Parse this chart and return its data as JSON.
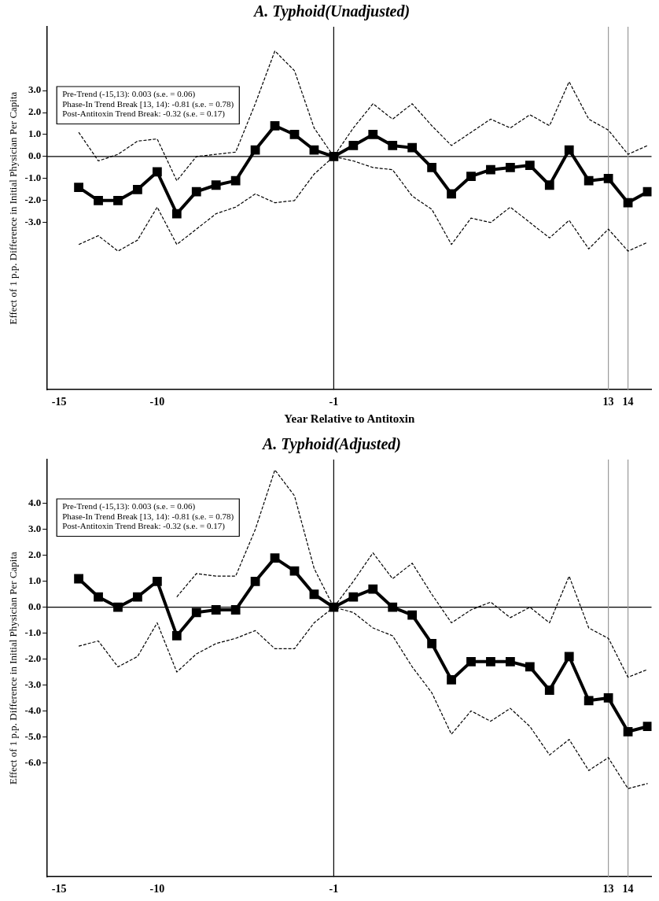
{
  "chart_data": [
    {
      "type": "line",
      "title": "A. Typhoid(Unadjusted)",
      "xlabel": "Year Relative to Antitoxin",
      "ylabel": "Effect of 1 p.p. Difference in Initial Physician Per Capita",
      "x": [
        -14,
        -13,
        -12,
        -11,
        -10,
        -9,
        -8,
        -7,
        -6,
        -5,
        -4,
        -3,
        -2,
        -1,
        0,
        1,
        2,
        3,
        4,
        5,
        6,
        7,
        8,
        9,
        10,
        11,
        12,
        13,
        14,
        15
      ],
      "series": [
        {
          "color": "#000000",
          "marker": "square",
          "line_style": "solid",
          "values": [
            -1.4,
            -2.0,
            -2.0,
            -1.5,
            -0.7,
            -2.6,
            -1.6,
            -1.3,
            -1.1,
            0.3,
            1.4,
            1.0,
            0.3,
            0,
            0.5,
            1.0,
            0.5,
            0.4,
            -0.5,
            -1.7,
            -0.9,
            -0.6,
            -0.5,
            -0.4,
            -1.3,
            0.3,
            -1.1,
            -1.0,
            -2.1,
            -1.6
          ]
        },
        {
          "color": "#000000",
          "marker": "none",
          "line_style": "dashed",
          "values": [
            1.1,
            -0.2,
            0.1,
            0.7,
            0.8,
            -1.1,
            0.0,
            0.1,
            0.2,
            2.4,
            4.8,
            3.9,
            1.3,
            0,
            1.3,
            2.4,
            1.7,
            2.4,
            1.4,
            0.5,
            1.1,
            1.7,
            1.3,
            1.9,
            1.4,
            3.4,
            1.7,
            1.2,
            0.1,
            0.5
          ]
        },
        {
          "color": "#000000",
          "marker": "none",
          "line_style": "dashed",
          "values": [
            -4.0,
            -3.6,
            -4.3,
            -3.8,
            -2.3,
            -4.0,
            -3.3,
            -2.6,
            -2.3,
            -1.7,
            -2.1,
            -2.0,
            -0.8,
            0,
            -0.2,
            -0.5,
            -0.6,
            -1.8,
            -2.4,
            -4.0,
            -2.8,
            -3.0,
            -2.3,
            -3.0,
            -3.7,
            -2.9,
            -4.2,
            -3.3,
            -4.3,
            -3.9
          ]
        }
      ],
      "xlim": [
        -15.6,
        15.2
      ],
      "xticks": [
        -15,
        -10,
        -1,
        13,
        14
      ],
      "ylim": [
        -10.6,
        5.9
      ],
      "yticks": [
        {
          "value": 3,
          "label": "3.0"
        },
        {
          "value": 2,
          "label": "2.0"
        },
        {
          "value": 1,
          "label": "1.0"
        },
        {
          "value": 0,
          "label": "0.0"
        },
        {
          "value": -1,
          "label": "-1.0"
        },
        {
          "value": -2,
          "label": "-2.0"
        },
        {
          "value": -3,
          "label": "-3.0"
        }
      ],
      "ref_lines": [
        {
          "axis": "y",
          "value": 0,
          "color": "#000000"
        },
        {
          "axis": "x",
          "value": -1,
          "color": "#000000"
        },
        {
          "axis": "x",
          "value": 13,
          "color": "#999999"
        },
        {
          "axis": "x",
          "value": 14,
          "color": "#999999"
        }
      ],
      "annotations": [
        "Pre-Trend (-15,13): 0.003 (s.e. = 0.06)",
        "Phase-In Trend Break [13, 14): -0.81 (s.e. = 0.78)",
        "Post-Antitoxin Trend Break: -0.32 (s.e. = 0.17)"
      ],
      "grid": false,
      "legend": false
    },
    {
      "type": "line",
      "title": "A. Typhoid(Adjusted)",
      "ylabel": "Effect of 1 p.p. Difference in Initial Physician Per Capita",
      "x": [
        -14,
        -13,
        -12,
        -11,
        -10,
        -9,
        -8,
        -7,
        -6,
        -5,
        -4,
        -3,
        -2,
        -1,
        0,
        1,
        2,
        3,
        4,
        5,
        6,
        7,
        8,
        9,
        10,
        11,
        12,
        13,
        14,
        15
      ],
      "series": [
        {
          "color": "#000000",
          "marker": "square",
          "line_style": "solid",
          "values": [
            1.1,
            0.4,
            0.0,
            0.4,
            1.0,
            -1.1,
            -0.2,
            -0.1,
            -0.1,
            1.0,
            1.9,
            1.4,
            0.5,
            0,
            0.4,
            0.7,
            0.0,
            -0.3,
            -1.4,
            -2.8,
            -2.1,
            -2.1,
            -2.1,
            -2.3,
            -3.2,
            -1.9,
            -3.6,
            -3.5,
            -4.8,
            -4.6
          ]
        },
        {
          "color": "#000000",
          "marker": "none",
          "line_style": "dashed",
          "values": [
            null,
            null,
            null,
            null,
            null,
            0.4,
            1.3,
            1.2,
            1.2,
            3.0,
            5.3,
            4.3,
            1.5,
            0,
            1.0,
            2.1,
            1.1,
            1.7,
            0.5,
            -0.6,
            -0.1,
            0.2,
            -0.4,
            0.0,
            -0.6,
            1.2,
            -0.8,
            -1.2,
            -2.7,
            -2.4
          ]
        },
        {
          "color": "#000000",
          "marker": "none",
          "line_style": "dashed",
          "values": [
            -1.5,
            -1.3,
            -2.3,
            -1.9,
            -0.6,
            -2.5,
            -1.8,
            -1.4,
            -1.2,
            -0.9,
            -1.6,
            -1.6,
            -0.6,
            0,
            -0.2,
            -0.8,
            -1.1,
            -2.3,
            -3.3,
            -4.9,
            -4.0,
            -4.4,
            -3.9,
            -4.6,
            -5.7,
            -5.1,
            -6.3,
            -5.8,
            -7.0,
            -6.8
          ]
        }
      ],
      "xlim": [
        -15.6,
        15.2
      ],
      "xticks": [
        -15,
        -10,
        -1,
        13,
        14
      ],
      "ylim": [
        -10.4,
        5.7
      ],
      "yticks": [
        {
          "value": 4,
          "label": "4.0"
        },
        {
          "value": 3,
          "label": "3.0"
        },
        {
          "value": 2,
          "label": "2.0"
        },
        {
          "value": 1,
          "label": "1.0"
        },
        {
          "value": 0,
          "label": "0.0"
        },
        {
          "value": -1,
          "label": "-1.0"
        },
        {
          "value": -2,
          "label": "-2.0"
        },
        {
          "value": -3,
          "label": "-3.0"
        },
        {
          "value": -4,
          "label": "-4.0"
        },
        {
          "value": -5,
          "label": "-5.0"
        },
        {
          "value": -6,
          "label": "-6.0"
        }
      ],
      "ref_lines": [
        {
          "axis": "y",
          "value": 0,
          "color": "#000000"
        },
        {
          "axis": "x",
          "value": -1,
          "color": "#000000"
        },
        {
          "axis": "x",
          "value": 13,
          "color": "#999999"
        },
        {
          "axis": "x",
          "value": 14,
          "color": "#999999"
        }
      ],
      "annotations": [
        "Pre-Trend (-15,13): 0.003 (s.e. = 0.06)",
        "Phase-In Trend Break [13, 14): -0.81 (s.e. = 0.78)",
        "Post-Antitoxin Trend Break: -0.32 (s.e. = 0.17)"
      ],
      "grid": false,
      "legend": false
    }
  ]
}
